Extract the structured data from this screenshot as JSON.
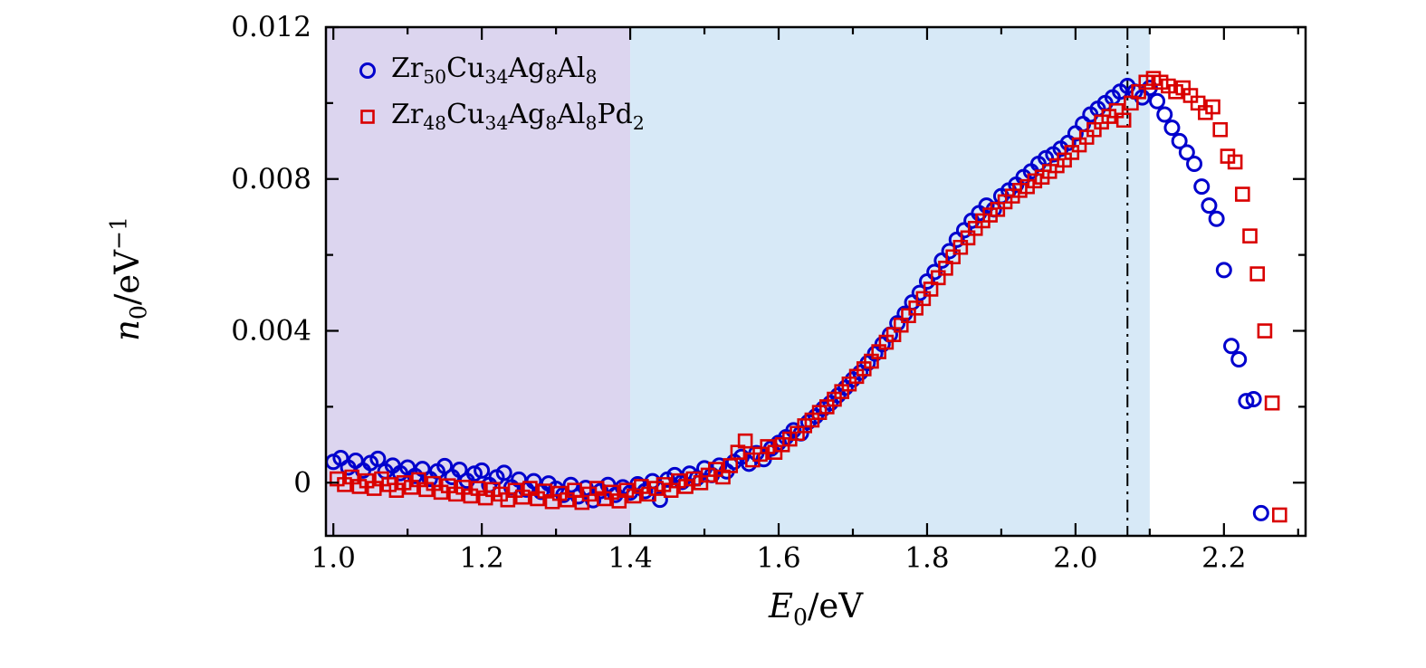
{
  "chart_data": {
    "type": "scatter",
    "title": "",
    "xlabel": {
      "var": "E",
      "sub": "0",
      "rest": "/eV"
    },
    "ylabel": {
      "var": "n",
      "sub": "0",
      "rest": "/eV",
      "sup": "−1"
    },
    "xlim": [
      0.99,
      2.31
    ],
    "ylim": [
      -0.0014,
      0.012
    ],
    "x_major_ticks": [
      1.0,
      1.2,
      1.4,
      1.6,
      1.8,
      2.0,
      2.2
    ],
    "x_major_labels": [
      "1.0",
      "1.2",
      "1.4",
      "1.6",
      "1.8",
      "2.0",
      "2.2"
    ],
    "x_minor_ticks": [
      1.1,
      1.3,
      1.5,
      1.7,
      1.9,
      2.1,
      2.3
    ],
    "y_major_ticks": [
      0,
      0.004,
      0.008,
      0.012
    ],
    "y_major_labels": [
      "0",
      "0.004",
      "0.008",
      "0.012"
    ],
    "y_minor_ticks": [
      0.002,
      0.006,
      0.01
    ],
    "grid": "off",
    "legend_position": "top-left",
    "background_regions": [
      {
        "x0": 0.99,
        "x1": 1.4,
        "color": "#dcd5ef"
      },
      {
        "x0": 1.4,
        "x1": 2.1,
        "color": "#d7e9f7"
      }
    ],
    "vline": {
      "x": 2.07,
      "style": "dash-dot",
      "color": "#000000"
    },
    "series": [
      {
        "name": "Zr50Cu34Ag8Al8",
        "label_formula": "Zr_{50}Cu_{34}Ag_{8}Al_{8}",
        "marker": "circle",
        "color": "#0000cd",
        "y_units": "eV^-1",
        "x_start": 1.0,
        "x_step": 0.01,
        "y_scale": 0.001,
        "y": [
          0.55,
          0.65,
          0.4,
          0.58,
          0.32,
          0.52,
          0.63,
          0.3,
          0.45,
          0.25,
          0.4,
          0.18,
          0.36,
          0.1,
          0.3,
          0.44,
          0.15,
          0.34,
          0.05,
          0.24,
          0.32,
          -0.06,
          0.14,
          0.26,
          -0.12,
          0.08,
          -0.18,
          0.04,
          -0.24,
          -0.02,
          -0.16,
          -0.32,
          -0.06,
          -0.36,
          -0.14,
          -0.46,
          -0.22,
          -0.06,
          -0.32,
          -0.12,
          -0.26,
          -0.04,
          -0.22,
          0.04,
          -0.45,
          0.08,
          0.2,
          0.02,
          0.24,
          0.12,
          0.38,
          0.2,
          0.45,
          0.3,
          0.55,
          0.68,
          0.5,
          0.78,
          0.62,
          0.9,
          1.05,
          1.2,
          1.38,
          1.3,
          1.6,
          1.75,
          1.95,
          2.1,
          2.3,
          2.5,
          2.72,
          2.9,
          3.15,
          3.4,
          3.65,
          3.9,
          4.2,
          4.45,
          4.75,
          5.0,
          5.3,
          5.55,
          5.85,
          6.1,
          6.4,
          6.65,
          6.9,
          7.1,
          7.3,
          7.2,
          7.55,
          7.7,
          7.85,
          8.05,
          8.2,
          8.4,
          8.55,
          8.65,
          8.8,
          8.95,
          9.2,
          9.45,
          9.7,
          9.85,
          10.0,
          10.15,
          10.3,
          10.45,
          10.3,
          10.15,
          10.4,
          10.05,
          9.7,
          9.35,
          9.0,
          8.7,
          8.4,
          7.8,
          7.3,
          6.95,
          5.6,
          3.6,
          3.25,
          2.15,
          2.2,
          -0.8
        ]
      },
      {
        "name": "Zr48Cu34Ag8Al8Pd2",
        "label_formula": "Zr_{48}Cu_{34}Ag_{8}Al_{8}Pd_{2}",
        "marker": "square",
        "color": "#d90000",
        "y_units": "eV^-1",
        "x_start": 1.005,
        "x_step": 0.01,
        "y_scale": 0.001,
        "y": [
          0.1,
          -0.05,
          0.15,
          -0.1,
          0.05,
          -0.15,
          0.1,
          -0.05,
          -0.2,
          0.0,
          -0.12,
          0.08,
          -0.18,
          -0.02,
          -0.25,
          -0.08,
          -0.3,
          -0.12,
          -0.35,
          -0.15,
          -0.4,
          -0.18,
          -0.3,
          -0.45,
          -0.2,
          -0.38,
          -0.15,
          -0.42,
          -0.22,
          -0.5,
          -0.28,
          -0.45,
          -0.2,
          -0.52,
          -0.3,
          -0.15,
          -0.42,
          -0.25,
          -0.48,
          -0.2,
          -0.35,
          -0.1,
          -0.3,
          -0.15,
          -0.05,
          -0.2,
          0.05,
          -0.1,
          0.1,
          0.0,
          0.2,
          0.35,
          0.15,
          0.45,
          0.8,
          1.1,
          0.6,
          0.75,
          0.95,
          0.8,
          1.0,
          1.15,
          1.3,
          1.5,
          1.65,
          1.85,
          2.0,
          2.2,
          2.4,
          2.6,
          2.8,
          3.0,
          3.2,
          3.45,
          3.7,
          3.9,
          4.15,
          4.4,
          4.6,
          4.85,
          5.1,
          5.4,
          5.65,
          5.95,
          6.2,
          6.45,
          6.7,
          6.9,
          7.05,
          7.2,
          7.4,
          7.55,
          7.7,
          7.8,
          7.95,
          8.05,
          8.2,
          8.35,
          8.5,
          8.7,
          8.9,
          9.1,
          9.3,
          9.5,
          9.65,
          9.8,
          9.55,
          10.0,
          10.3,
          10.55,
          10.65,
          10.55,
          10.45,
          10.3,
          10.4,
          10.2,
          10.0,
          9.75,
          9.9,
          9.3,
          8.6,
          8.45,
          7.6,
          6.5,
          5.5,
          4.0,
          2.1,
          -0.85
        ]
      }
    ]
  }
}
